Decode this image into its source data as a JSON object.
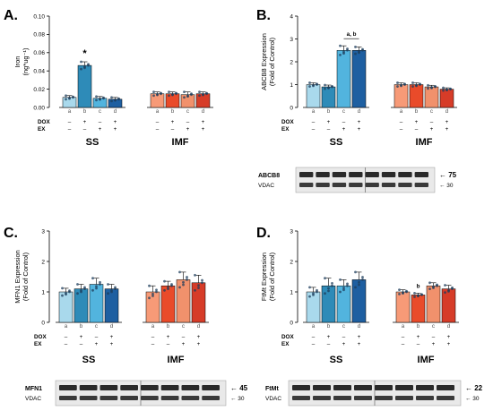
{
  "colors": {
    "ss": [
      "#a9d9ec",
      "#2e8bb8",
      "#52b4de",
      "#1e5fa1"
    ],
    "imf": [
      "#f79a77",
      "#e94b2a",
      "#f1916c",
      "#d63c28"
    ],
    "axis": "#000000"
  },
  "panel_letters": [
    "A.",
    "B.",
    "C.",
    "D."
  ],
  "row_labels": [
    "DOX",
    "EX"
  ],
  "row_values": {
    "DOX": [
      "–",
      "+",
      "–",
      "+"
    ],
    "EX": [
      "–",
      "–",
      "+",
      "+"
    ]
  },
  "group_labels": [
    "SS",
    "IMF"
  ],
  "bar_letters": [
    "a",
    "b",
    "c",
    "d"
  ],
  "western_blots": {
    "B": {
      "protein": "ABCB8",
      "protein_kda": "75",
      "loading": "VDAC",
      "loading_kda": "30"
    },
    "C": {
      "protein": "MFN1",
      "protein_kda": "45",
      "loading": "VDAC",
      "loading_kda": "30"
    },
    "D": {
      "protein": "FtMt",
      "protein_kda": "22",
      "loading": "VDAC",
      "loading_kda": "30"
    }
  },
  "chart_data": [
    {
      "panel": "A.",
      "type": "bar",
      "ylabel": "Iron",
      "ylabel2": "(ng*ug⁻¹)",
      "ylim": [
        0,
        0.1
      ],
      "yticks": [
        "0.00",
        "0.02",
        "0.04",
        "0.06",
        "0.08",
        "0.10"
      ],
      "annotations": [
        {
          "group": 0,
          "bar": 1,
          "text": "*"
        }
      ],
      "groups": [
        {
          "name": "SS",
          "values": [
            0.011,
            0.046,
            0.01,
            0.009
          ],
          "errors": [
            0.002,
            0.004,
            0.002,
            0.002
          ]
        },
        {
          "name": "IMF",
          "values": [
            0.015,
            0.015,
            0.014,
            0.015
          ],
          "errors": [
            0.002,
            0.002,
            0.003,
            0.002
          ]
        }
      ]
    },
    {
      "panel": "B.",
      "type": "bar",
      "ylabel": "ABCB8 Expression",
      "ylabel2": "(Fold of Control)",
      "ylim": [
        0,
        4
      ],
      "yticks": [
        "0",
        "1",
        "2",
        "3",
        "4"
      ],
      "annotations": [
        {
          "group": 0,
          "bars": [
            2,
            3
          ],
          "text": "a, b"
        }
      ],
      "groups": [
        {
          "name": "SS",
          "values": [
            1.0,
            0.9,
            2.5,
            2.5
          ],
          "errors": [
            0.08,
            0.08,
            0.2,
            0.15
          ]
        },
        {
          "name": "IMF",
          "values": [
            1.0,
            1.0,
            0.9,
            0.8
          ],
          "errors": [
            0.08,
            0.08,
            0.07,
            0.06
          ]
        }
      ]
    },
    {
      "panel": "C.",
      "type": "bar",
      "ylabel": "MFN1 Expression",
      "ylabel2": "(Fold of Control)",
      "ylim": [
        0,
        3
      ],
      "yticks": [
        "0",
        "1",
        "2",
        "3"
      ],
      "annotations": [],
      "groups": [
        {
          "name": "SS",
          "values": [
            1.0,
            1.1,
            1.25,
            1.1
          ],
          "errors": [
            0.12,
            0.15,
            0.2,
            0.15
          ]
        },
        {
          "name": "IMF",
          "values": [
            1.0,
            1.2,
            1.4,
            1.3
          ],
          "errors": [
            0.2,
            0.15,
            0.25,
            0.25
          ]
        }
      ]
    },
    {
      "panel": "D.",
      "type": "bar",
      "ylabel": "FtMt Expression",
      "ylabel2": "(Fold of Control)",
      "ylim": [
        0,
        3
      ],
      "yticks": [
        "0",
        "1",
        "2",
        "3"
      ],
      "annotations": [
        {
          "group": 1,
          "bar": 1,
          "text": "b"
        }
      ],
      "groups": [
        {
          "name": "SS",
          "values": [
            1.0,
            1.2,
            1.2,
            1.4
          ],
          "errors": [
            0.15,
            0.25,
            0.2,
            0.25
          ]
        },
        {
          "name": "IMF",
          "values": [
            1.0,
            0.9,
            1.2,
            1.1
          ],
          "errors": [
            0.07,
            0.06,
            0.1,
            0.12
          ]
        }
      ]
    }
  ]
}
